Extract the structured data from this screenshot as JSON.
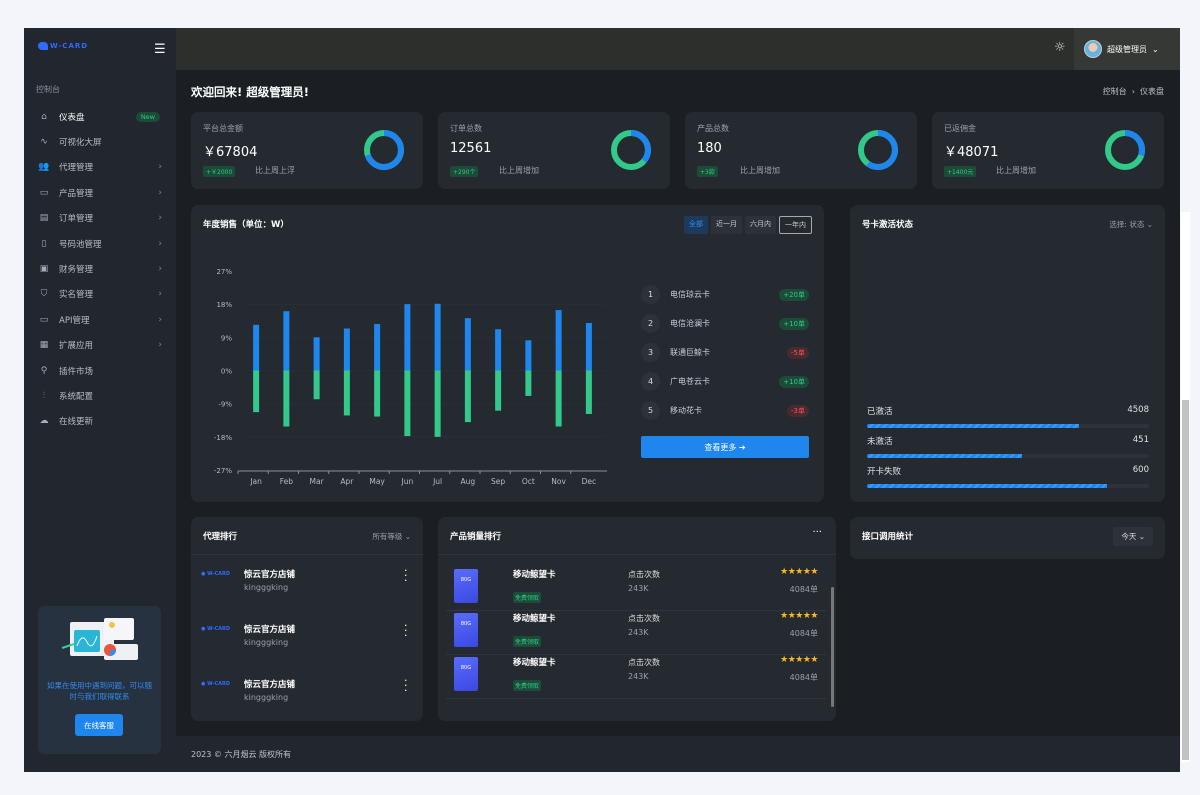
{
  "brand": {
    "logo_text": "W-CARD"
  },
  "sidebar": {
    "section": "控制台",
    "items": [
      {
        "label": "仪表盘",
        "icon": "home-icon",
        "badge": "New",
        "active": true
      },
      {
        "label": "可视化大屏",
        "icon": "activity-icon"
      },
      {
        "label": "代理管理",
        "icon": "users-icon",
        "chevron": true
      },
      {
        "label": "产品管理",
        "icon": "archive-icon",
        "chevron": true
      },
      {
        "label": "订单管理",
        "icon": "file-icon",
        "chevron": true
      },
      {
        "label": "号码池管理",
        "icon": "phone-icon",
        "chevron": true
      },
      {
        "label": "财务管理",
        "icon": "briefcase-icon",
        "chevron": true
      },
      {
        "label": "实名管理",
        "icon": "shield-icon",
        "chevron": true
      },
      {
        "label": "API管理",
        "icon": "monitor-icon",
        "chevron": true
      },
      {
        "label": "扩展应用",
        "icon": "grid-icon",
        "chevron": true
      },
      {
        "label": "插件市场",
        "icon": "wrench-icon"
      },
      {
        "label": "系统配置",
        "icon": "sliders-icon"
      },
      {
        "label": "在线更新",
        "icon": "cloud-icon"
      }
    ],
    "help": {
      "text": "如果在使用中遇到问题，可以随时与我们取得联系",
      "button": "在线客服"
    }
  },
  "topbar": {
    "user": "超级管理员"
  },
  "page": {
    "welcome": "欢迎回来! 超级管理员!",
    "breadcrumb": [
      "控制台",
      "仪表盘"
    ]
  },
  "colors": {
    "blue": "#1f86ee",
    "green": "#32c98a",
    "red": "#f0545c"
  },
  "stats": [
    {
      "label": "平台总金额",
      "value": "￥67804",
      "delta": "+￥2000",
      "compare": "比上周上浮",
      "blue_fraction": 0.7
    },
    {
      "label": "订单总数",
      "value": "12561",
      "delta": "+290个",
      "compare": "比上周增加",
      "blue_fraction": 0.36
    },
    {
      "label": "产品总数",
      "value": "180",
      "delta": "+3款",
      "compare": "比上周增加",
      "blue_fraction": 0.6
    },
    {
      "label": "已返佣金",
      "value": "￥48071",
      "delta": "+1400元",
      "compare": "比上周增加",
      "blue_fraction": 0.3
    }
  ],
  "sales": {
    "title": "年度销售（单位：W）",
    "filters": [
      "全部",
      "近一月",
      "六月内",
      "一年内"
    ],
    "ranking": [
      {
        "rank": "1",
        "name": "电信琼云卡",
        "change": "+20单",
        "trend": "up"
      },
      {
        "rank": "2",
        "name": "电信沧澜卡",
        "change": "+10单",
        "trend": "up"
      },
      {
        "rank": "3",
        "name": "联通巨鲸卡",
        "change": "-5单",
        "trend": "down"
      },
      {
        "rank": "4",
        "name": "广电苍云卡",
        "change": "+10单",
        "trend": "up"
      },
      {
        "rank": "5",
        "name": "移动花卡",
        "change": "-3单",
        "trend": "down"
      }
    ],
    "more": "查看更多 ➔"
  },
  "chart_data": {
    "type": "bar",
    "categories": [
      "Jan",
      "Feb",
      "Mar",
      "Apr",
      "May",
      "Jun",
      "Jul",
      "Aug",
      "Sep",
      "Oct",
      "Nov",
      "Dec"
    ],
    "series": [
      {
        "values": [
          12.4,
          16.1,
          9.0,
          11.4,
          12.6,
          18.0,
          18.1,
          14.2,
          11.2,
          8.2,
          16.4,
          12.9
        ],
        "color": "#1f86ee"
      },
      {
        "values": [
          -11.3,
          -15.2,
          -7.8,
          -12.2,
          -12.5,
          -17.8,
          -18.0,
          -14.0,
          -10.9,
          -6.9,
          -15.2,
          -11.8
        ],
        "color": "#32c98a"
      }
    ],
    "yticks": [
      "27%",
      "18%",
      "9%",
      "0%",
      "-9%",
      "-18%",
      "-27%"
    ],
    "ylim": [
      -27,
      27
    ],
    "grid": true
  },
  "activation": {
    "title": "号卡激活状态",
    "select": "选择: 状态",
    "rows": [
      {
        "label": "已激活",
        "value": "4508",
        "fraction": 0.75
      },
      {
        "label": "未激活",
        "value": "451",
        "fraction": 0.55
      },
      {
        "label": "开卡失败",
        "value": "600",
        "fraction": 0.85
      }
    ]
  },
  "agents": {
    "title": "代理排行",
    "filter": "所有等级",
    "items": [
      {
        "name": "惊云官方店铺",
        "user": "kingggking"
      },
      {
        "name": "惊云官方店铺",
        "user": "kingggking"
      },
      {
        "name": "惊云官方店铺",
        "user": "kingggking"
      }
    ]
  },
  "products": {
    "title": "产品销量排行",
    "items": [
      {
        "name": "移动鲸望卡",
        "tag": "免费领取",
        "clicks_label": "点击次数",
        "clicks": "243K",
        "sales": "4084单",
        "rating": 5,
        "img_text": "80G"
      },
      {
        "name": "移动鲸望卡",
        "tag": "免费领取",
        "clicks_label": "点击次数",
        "clicks": "243K",
        "sales": "4084单",
        "rating": 5,
        "img_text": "80G"
      },
      {
        "name": "移动鲸望卡",
        "tag": "免费领取",
        "clicks_label": "点击次数",
        "clicks": "243K",
        "sales": "4084单",
        "rating": 5,
        "img_text": "80G"
      }
    ]
  },
  "api": {
    "title": "接口调用统计",
    "select": "今天"
  },
  "footer": {
    "text": "2023 © 六月烟云 版权所有"
  }
}
